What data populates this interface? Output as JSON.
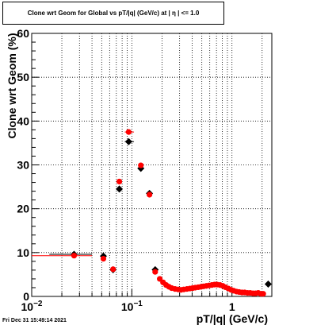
{
  "chart_data": {
    "type": "scatter",
    "title": "Clone wrt Geom for Global vs pT/|q| (GeV/c) at |  η  | <= 1.0",
    "xlabel": "pT/|q| (GeV/c)",
    "ylabel": "Clone wrt Geom (%)",
    "xscale": "log",
    "xlim": [
      0.01,
      2.5
    ],
    "ylim": [
      0,
      60
    ],
    "yticks": [
      0,
      10,
      20,
      30,
      40,
      50,
      60
    ],
    "xtick_labels": [
      {
        "value": 0.01,
        "base": "10",
        "exp": "−2"
      },
      {
        "value": 0.1,
        "base": "10",
        "exp": "−1"
      },
      {
        "value": 1,
        "base": "1",
        "exp": ""
      }
    ],
    "grid": true,
    "colors": {
      "black_series": "#000000",
      "red_series": "#ff0000"
    },
    "series": [
      {
        "color": "#000000",
        "marker": "diamond",
        "points": [
          {
            "x": 0.0265,
            "y": 9.6,
            "xerr": [
              0.015,
              0.04
            ]
          },
          {
            "x": 0.052,
            "y": 9.2
          },
          {
            "x": 0.065,
            "y": 6.1
          },
          {
            "x": 0.075,
            "y": 24.5
          },
          {
            "x": 0.093,
            "y": 35.3,
            "xerr": [
              0.085,
              0.105
            ]
          },
          {
            "x": 0.123,
            "y": 29.2
          },
          {
            "x": 0.15,
            "y": 23.5
          },
          {
            "x": 0.171,
            "y": 6.1
          },
          {
            "x": 2.3,
            "y": 2.8
          }
        ]
      },
      {
        "color": "#ff0000",
        "marker": "circle",
        "points": [
          {
            "x": 0.0265,
            "y": 9.3,
            "xerr": [
              0.01,
              0.04
            ]
          },
          {
            "x": 0.052,
            "y": 8.6
          },
          {
            "x": 0.065,
            "y": 6.2
          },
          {
            "x": 0.075,
            "y": 26.2
          },
          {
            "x": 0.093,
            "y": 37.5,
            "xerr": [
              0.085,
              0.105
            ]
          },
          {
            "x": 0.123,
            "y": 29.9
          },
          {
            "x": 0.15,
            "y": 23.2
          },
          {
            "x": 0.171,
            "y": 5.6
          },
          {
            "x": 0.19,
            "y": 4.0
          },
          {
            "x": 0.205,
            "y": 3.2
          },
          {
            "x": 0.22,
            "y": 2.6
          },
          {
            "x": 0.235,
            "y": 2.2
          },
          {
            "x": 0.25,
            "y": 1.9
          },
          {
            "x": 0.27,
            "y": 1.7
          },
          {
            "x": 0.29,
            "y": 1.6
          },
          {
            "x": 0.31,
            "y": 1.5
          },
          {
            "x": 0.33,
            "y": 1.6
          },
          {
            "x": 0.355,
            "y": 1.7
          },
          {
            "x": 0.38,
            "y": 1.8
          },
          {
            "x": 0.405,
            "y": 1.9
          },
          {
            "x": 0.43,
            "y": 2.0
          },
          {
            "x": 0.46,
            "y": 2.1
          },
          {
            "x": 0.49,
            "y": 2.2
          },
          {
            "x": 0.52,
            "y": 2.3
          },
          {
            "x": 0.555,
            "y": 2.4
          },
          {
            "x": 0.59,
            "y": 2.5
          },
          {
            "x": 0.63,
            "y": 2.6
          },
          {
            "x": 0.67,
            "y": 2.7
          },
          {
            "x": 0.71,
            "y": 2.7
          },
          {
            "x": 0.76,
            "y": 2.6
          },
          {
            "x": 0.81,
            "y": 2.4
          },
          {
            "x": 0.86,
            "y": 2.1
          },
          {
            "x": 0.92,
            "y": 1.8
          },
          {
            "x": 0.98,
            "y": 1.5
          },
          {
            "x": 1.04,
            "y": 1.3
          },
          {
            "x": 1.11,
            "y": 1.1
          },
          {
            "x": 1.18,
            "y": 1.0
          },
          {
            "x": 1.26,
            "y": 0.9
          },
          {
            "x": 1.34,
            "y": 0.9
          },
          {
            "x": 1.43,
            "y": 0.8
          },
          {
            "x": 1.52,
            "y": 0.8
          },
          {
            "x": 1.62,
            "y": 0.7
          },
          {
            "x": 1.72,
            "y": 0.7
          },
          {
            "x": 1.83,
            "y": 0.8
          },
          {
            "x": 1.95,
            "y": 0.6
          },
          {
            "x": 2.05,
            "y": 0.6
          }
        ]
      }
    ]
  },
  "footer": {
    "timestamp": "Fri Dec 31 15:49:14 2021"
  }
}
